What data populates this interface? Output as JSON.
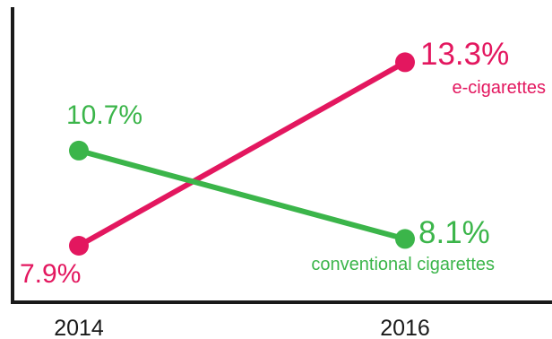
{
  "chart_data": {
    "type": "line",
    "title": "",
    "xlabel": "",
    "ylabel": "",
    "categories": [
      "2014",
      "2016"
    ],
    "ylim": [
      6,
      15
    ],
    "grid": false,
    "legend": "none",
    "series": [
      {
        "name": "e-cigarettes",
        "values": [
          7.9,
          13.3
        ],
        "value_labels": [
          "7.9%",
          "13.3%"
        ],
        "color": "#e3175f"
      },
      {
        "name": "conventional cigarettes",
        "values": [
          10.7,
          8.1
        ],
        "value_labels": [
          "10.7%",
          "8.1%"
        ],
        "color": "#3bb54a"
      }
    ],
    "axis_color": "#1a1a1a"
  }
}
